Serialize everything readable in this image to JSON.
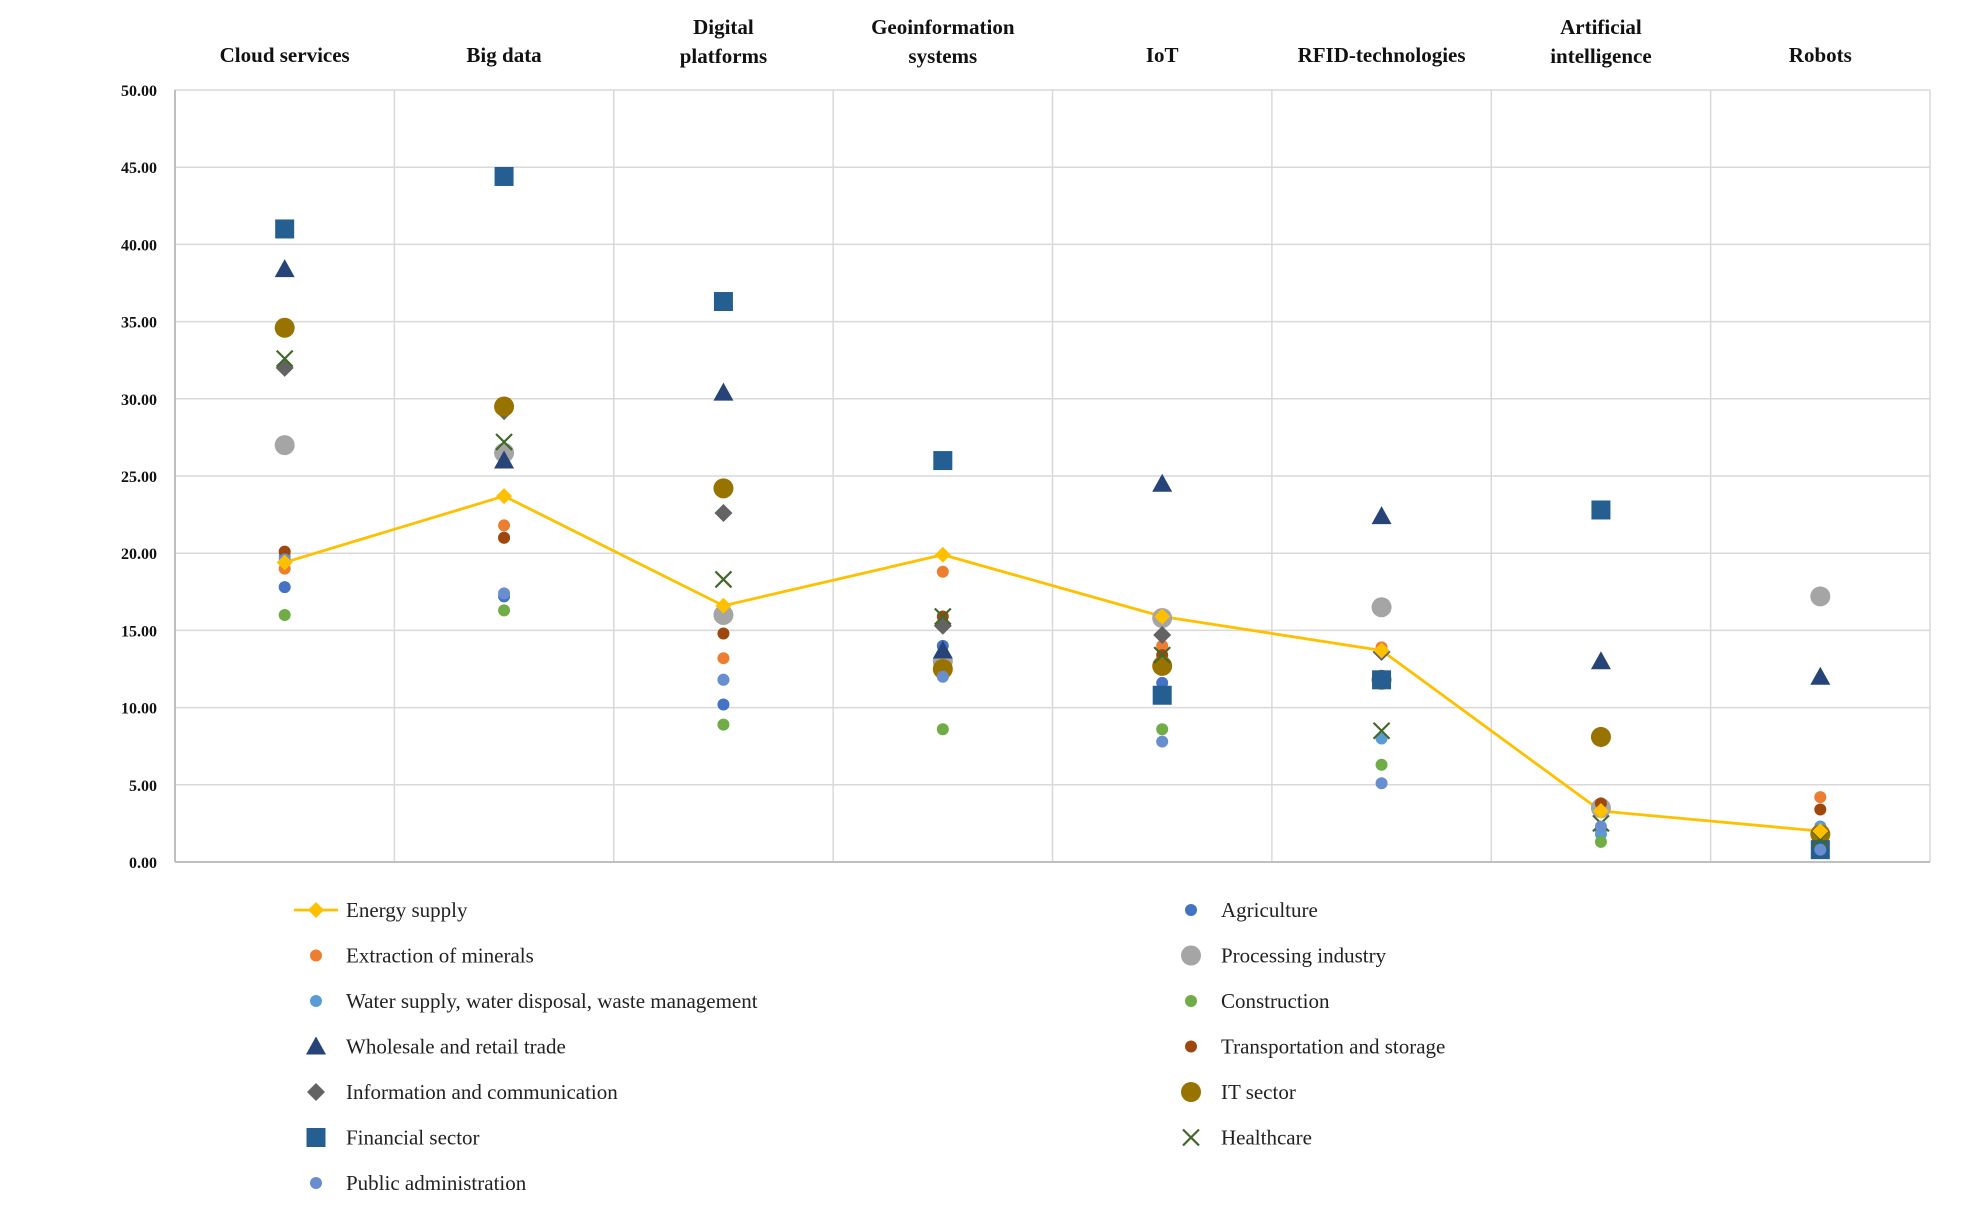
{
  "chart_data": {
    "type": "scatter",
    "title": "",
    "xlabel": "",
    "ylabel": "",
    "categories": [
      "Cloud services",
      "Big data",
      "Digital platforms",
      "Geoinformation systems",
      "IoT",
      "RFID-technologies",
      "Artificial intelligence",
      "Robots"
    ],
    "category_lines": [
      [
        "Cloud services"
      ],
      [
        "Big data"
      ],
      [
        "Digital",
        "platforms"
      ],
      [
        "Geoinformation",
        "systems"
      ],
      [
        "IoT"
      ],
      [
        "RFID-technologies"
      ],
      [
        "Artificial",
        "intelligence"
      ],
      [
        "Robots"
      ]
    ],
    "ylim": [
      0,
      50
    ],
    "yticks": [
      "0.00",
      "5.00",
      "10.00",
      "15.00",
      "20.00",
      "25.00",
      "30.00",
      "35.00",
      "40.00",
      "45.00",
      "50.00"
    ],
    "grid": true,
    "legend_position": "bottom",
    "series": [
      {
        "name": "Energy supply",
        "marker": "diamond-line",
        "color": "#FFC000",
        "values": [
          19.4,
          23.7,
          16.6,
          19.9,
          15.9,
          13.7,
          3.3,
          2.0
        ]
      },
      {
        "name": "Agriculture",
        "marker": "circle-small",
        "color": "#4472C4",
        "values": [
          17.8,
          17.2,
          10.2,
          14.0,
          11.6,
          11.9,
          2.1,
          1.0
        ]
      },
      {
        "name": "Extraction of minerals",
        "marker": "circle-small",
        "color": "#ED7D31",
        "values": [
          19.0,
          21.8,
          13.2,
          18.8,
          14.0,
          13.9,
          3.5,
          4.2
        ]
      },
      {
        "name": "Processing industry",
        "marker": "circle-large",
        "color": "#A5A5A5",
        "values": [
          27.0,
          26.5,
          16.0,
          13.0,
          15.8,
          16.5,
          3.5,
          17.2
        ]
      },
      {
        "name": "Water supply, water disposal, waste management",
        "marker": "circle-small",
        "color": "#5B9BD5",
        "values": [
          19.8,
          21.0,
          11.8,
          12.2,
          12.6,
          8.0,
          1.8,
          2.3
        ]
      },
      {
        "name": "Construction",
        "marker": "circle-small",
        "color": "#70AD47",
        "values": [
          16.0,
          16.3,
          8.9,
          8.6,
          8.6,
          6.3,
          1.3,
          1.0
        ]
      },
      {
        "name": "Wholesale and retail trade",
        "marker": "triangle",
        "color": "#264478",
        "values": [
          38.4,
          26.0,
          30.4,
          13.7,
          24.5,
          22.4,
          13.0,
          12.0
        ]
      },
      {
        "name": "Transportation and storage",
        "marker": "circle-small",
        "color": "#9E480E",
        "values": [
          20.1,
          21.0,
          14.8,
          15.9,
          13.4,
          12.0,
          3.8,
          3.4
        ]
      },
      {
        "name": "Information and communication",
        "marker": "diamond",
        "color": "#636363",
        "values": [
          32.0,
          29.2,
          22.6,
          15.3,
          14.7,
          13.6,
          8.0,
          1.5
        ]
      },
      {
        "name": "IT sector",
        "marker": "circle-large",
        "color": "#997300",
        "values": [
          34.6,
          29.5,
          24.2,
          12.5,
          12.7,
          11.8,
          8.1,
          1.8
        ]
      },
      {
        "name": "Financial sector",
        "marker": "square",
        "color": "#255E91",
        "values": [
          41.0,
          44.4,
          36.3,
          26.0,
          10.8,
          11.8,
          22.8,
          0.8
        ]
      },
      {
        "name": "Healthcare",
        "marker": "x",
        "color": "#43682B",
        "values": [
          32.6,
          27.2,
          18.3,
          15.9,
          13.4,
          8.5,
          2.5,
          1.5
        ]
      },
      {
        "name": "Public administration",
        "marker": "circle-small",
        "color": "#698ED0",
        "values": [
          19.6,
          17.4,
          11.8,
          12.0,
          7.8,
          5.1,
          2.3,
          0.8
        ]
      }
    ],
    "legend_left": [
      "Energy supply",
      "Extraction of minerals",
      "Water supply, water disposal, waste management",
      "Wholesale and retail trade",
      "Information and communication",
      "Financial sector",
      "Public administration"
    ],
    "legend_right": [
      "Agriculture",
      "Processing industry",
      "Construction",
      "Transportation and storage",
      "IT sector",
      "Healthcare"
    ]
  }
}
